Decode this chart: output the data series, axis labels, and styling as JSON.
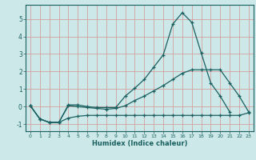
{
  "xlabel": "Humidex (Indice chaleur)",
  "bg_color": "#cce8e8",
  "grid_color": "#d4a0a0",
  "line_color": "#1a6060",
  "xlim": [
    -0.5,
    23.5
  ],
  "ylim": [
    -1.4,
    5.8
  ],
  "xticks": [
    0,
    1,
    2,
    3,
    4,
    5,
    6,
    7,
    8,
    9,
    10,
    11,
    12,
    13,
    14,
    15,
    16,
    17,
    18,
    19,
    20,
    21,
    22,
    23
  ],
  "yticks": [
    -1,
    0,
    1,
    2,
    3,
    4,
    5
  ],
  "series": [
    {
      "x": [
        0,
        1,
        2,
        3,
        4,
        5,
        6,
        7,
        8,
        9,
        10,
        11,
        12,
        13,
        14,
        15,
        16,
        17,
        18,
        19,
        20,
        21
      ],
      "y": [
        0.05,
        -0.7,
        -0.9,
        -0.9,
        0.1,
        0.1,
        0.0,
        -0.05,
        -0.05,
        -0.05,
        0.6,
        1.05,
        1.55,
        2.25,
        2.95,
        4.7,
        5.35,
        4.8,
        3.05,
        1.35,
        0.6,
        -0.3
      ]
    },
    {
      "x": [
        0,
        1,
        2,
        3,
        4,
        5,
        6,
        7,
        8,
        9,
        10,
        11,
        12,
        13,
        14,
        15,
        16,
        17,
        18,
        19,
        20,
        21,
        22,
        23
      ],
      "y": [
        0.05,
        -0.7,
        -0.9,
        -0.9,
        0.05,
        0.0,
        -0.05,
        -0.1,
        -0.15,
        -0.1,
        0.05,
        0.35,
        0.6,
        0.9,
        1.2,
        1.55,
        1.9,
        2.1,
        2.1,
        2.1,
        2.1,
        1.35,
        0.6,
        -0.3
      ]
    },
    {
      "x": [
        0,
        1,
        2,
        3,
        4,
        5,
        6,
        7,
        8,
        9,
        10,
        11,
        12,
        13,
        14,
        15,
        16,
        17,
        18,
        19,
        20,
        21,
        22,
        23
      ],
      "y": [
        0.05,
        -0.7,
        -0.9,
        -0.9,
        -0.65,
        -0.55,
        -0.5,
        -0.5,
        -0.5,
        -0.5,
        -0.5,
        -0.5,
        -0.5,
        -0.5,
        -0.5,
        -0.5,
        -0.5,
        -0.5,
        -0.5,
        -0.5,
        -0.5,
        -0.5,
        -0.5,
        -0.35
      ]
    }
  ]
}
